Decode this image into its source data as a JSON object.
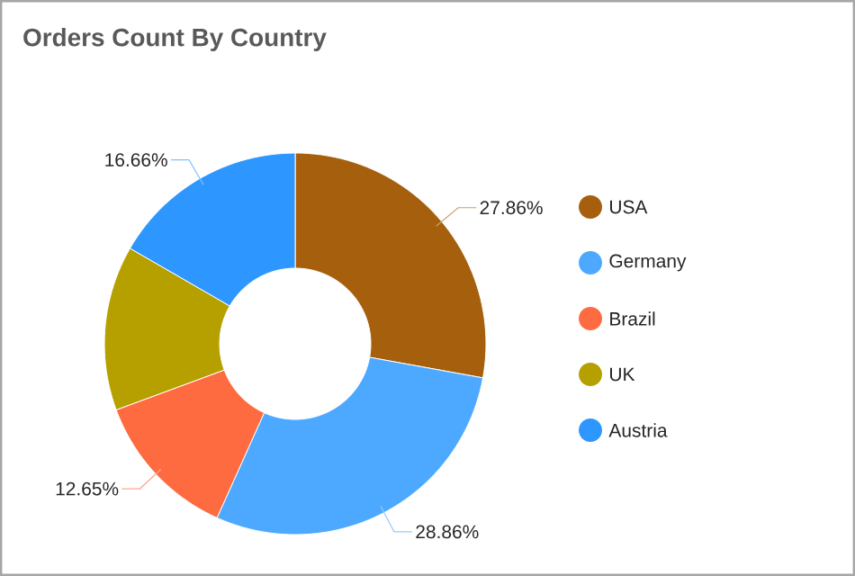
{
  "chart_data": {
    "type": "donut",
    "title": "Orders Count By Country",
    "categories": [
      "USA",
      "Germany",
      "Brazil",
      "UK",
      "Austria"
    ],
    "values": [
      27.86,
      28.86,
      12.65,
      13.97,
      16.66
    ],
    "value_labels": [
      "27.86%",
      "28.86%",
      "12.65%",
      null,
      "16.66%"
    ],
    "colors": [
      "#a65f0c",
      "#4da9ff",
      "#ff6b40",
      "#b5a000",
      "#2e97ff"
    ],
    "legend": "right"
  }
}
